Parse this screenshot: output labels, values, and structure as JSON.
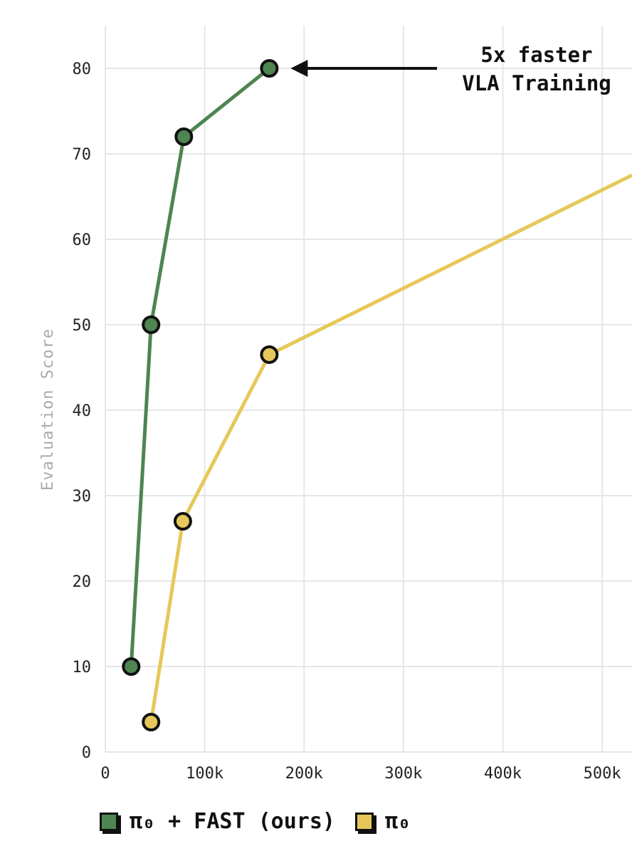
{
  "chart_data": {
    "type": "line",
    "xlabel": "",
    "ylabel": "Evaluation Score",
    "xlim": [
      0,
      530000
    ],
    "ylim": [
      0,
      85
    ],
    "x_ticks": [
      0,
      100000,
      200000,
      300000,
      400000,
      500000
    ],
    "x_tick_labels": [
      "0",
      "100k",
      "200k",
      "300k",
      "400k",
      "500k"
    ],
    "y_ticks": [
      0,
      10,
      20,
      30,
      40,
      50,
      60,
      70,
      80
    ],
    "y_tick_labels": [
      "0",
      "10",
      "20",
      "30",
      "40",
      "50",
      "60",
      "70",
      "80"
    ],
    "grid": true,
    "legend_position": "bottom-left",
    "series": [
      {
        "name": "π₀ + FAST (ours)",
        "color": "#4e8551",
        "x": [
          26000,
          46000,
          79000,
          165000
        ],
        "y": [
          10,
          50,
          72,
          80
        ]
      },
      {
        "name": "π₀",
        "color": "#e6c85a",
        "x": [
          46000,
          78000,
          165000,
          530000
        ],
        "y": [
          3.5,
          27,
          46.5,
          67.5
        ]
      }
    ],
    "annotations": [
      {
        "lines": [
          "5x faster",
          "VLA Training"
        ],
        "points_to_series": 0,
        "points_to_index": 3
      }
    ]
  }
}
